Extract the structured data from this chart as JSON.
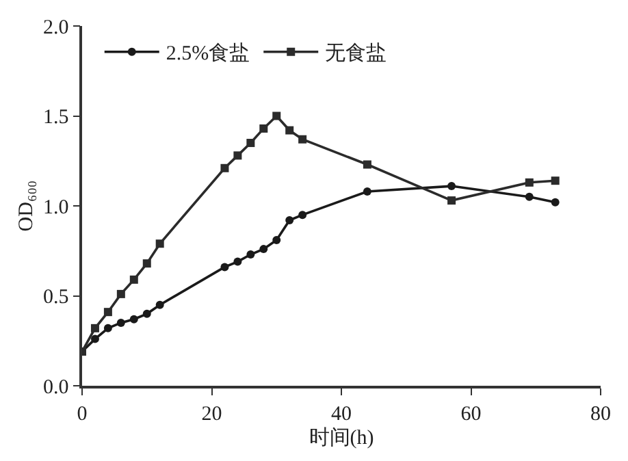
{
  "chart_data": {
    "type": "line",
    "xlabel": "时间(h)",
    "ylabel": "OD₆₀₀",
    "xlim": [
      0,
      80
    ],
    "xticks": [
      0,
      20,
      40,
      60,
      80
    ],
    "ylim": [
      0,
      2.0
    ],
    "yticks": [
      {
        "value": 0,
        "label": "0.0"
      },
      0.5,
      {
        "value": 1,
        "label": "1.0"
      },
      1.5,
      {
        "value": 2,
        "label": "2.0"
      }
    ],
    "legend": "top left",
    "line_style": "solid",
    "x": [
      0,
      2,
      4,
      6,
      8,
      10,
      12,
      22,
      24,
      26,
      28,
      30,
      32,
      34,
      44,
      57,
      69,
      73
    ],
    "series": [
      {
        "name": "2.5%食盐",
        "color": "#1a1a1a",
        "marker": "circle",
        "values": [
          0.19,
          0.26,
          0.32,
          0.35,
          0.37,
          0.4,
          0.45,
          0.66,
          0.69,
          0.73,
          0.76,
          0.81,
          0.92,
          0.95,
          1.08,
          1.11,
          1.05,
          1.02
        ]
      },
      {
        "name": "无食盐",
        "color": "#2b2b2b",
        "marker": "square",
        "values": [
          0.19,
          0.32,
          0.41,
          0.51,
          0.59,
          0.68,
          0.79,
          1.21,
          1.28,
          1.35,
          1.43,
          1.5,
          1.42,
          1.37,
          1.23,
          1.03,
          1.13,
          1.14
        ]
      }
    ]
  }
}
